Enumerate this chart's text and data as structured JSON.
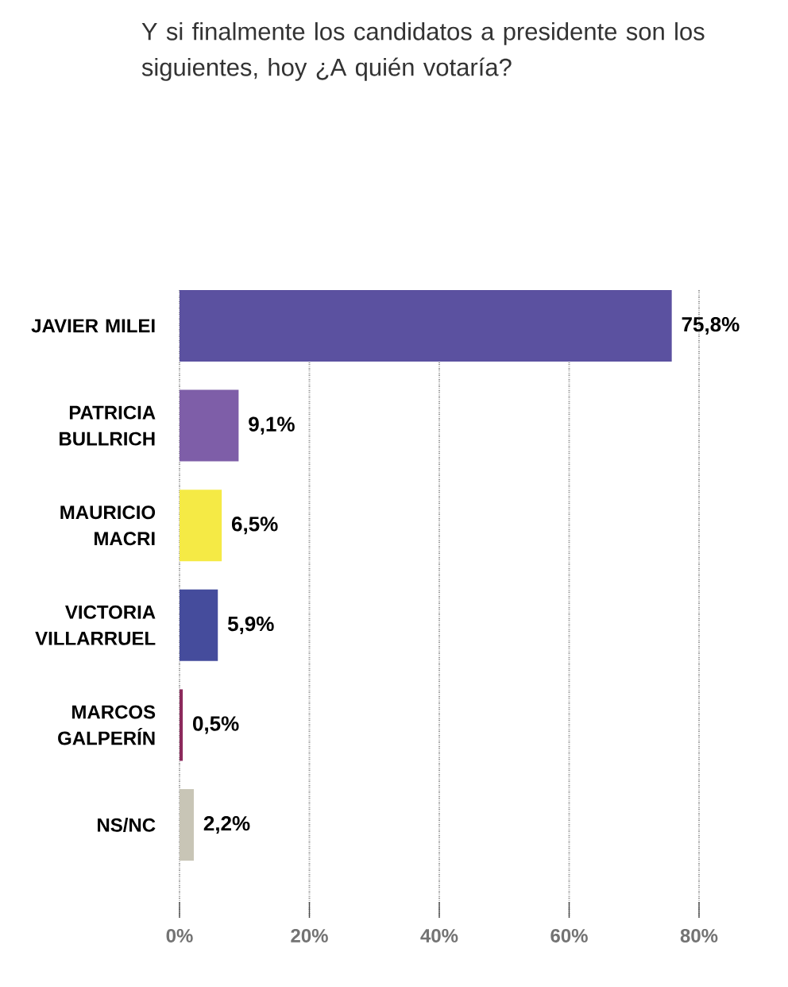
{
  "chart_data": {
    "type": "bar",
    "orientation": "horizontal",
    "title": "Y si finalmente los candidatos a presidente son los siguientes, hoy ¿A quién votaría?",
    "categories": [
      "JAVIER MILEI",
      "PATRICIA BULLRICH",
      "MAURICIO MACRI",
      "VICTORIA VILLARRUEL",
      "MARCOS GALPERÍN",
      "NS/NC"
    ],
    "values": [
      75.8,
      9.1,
      6.5,
      5.9,
      0.5,
      2.2
    ],
    "value_labels": [
      "75,8%",
      "9,1%",
      "6,5%",
      "5,9%",
      "0,5%",
      "2,2%"
    ],
    "colors": [
      "#5b51a0",
      "#7e5ea8",
      "#f5ea45",
      "#454c9c",
      "#8c2a5c",
      "#c8c5b6"
    ],
    "xlim": [
      0,
      80
    ],
    "xticks": [
      {
        "value": 0,
        "label": "0%"
      },
      {
        "value": 20,
        "label": "20%"
      },
      {
        "value": 40,
        "label": "40%"
      },
      {
        "value": 60,
        "label": "60%"
      },
      {
        "value": 80,
        "label": "80%"
      }
    ],
    "grid": "x"
  }
}
